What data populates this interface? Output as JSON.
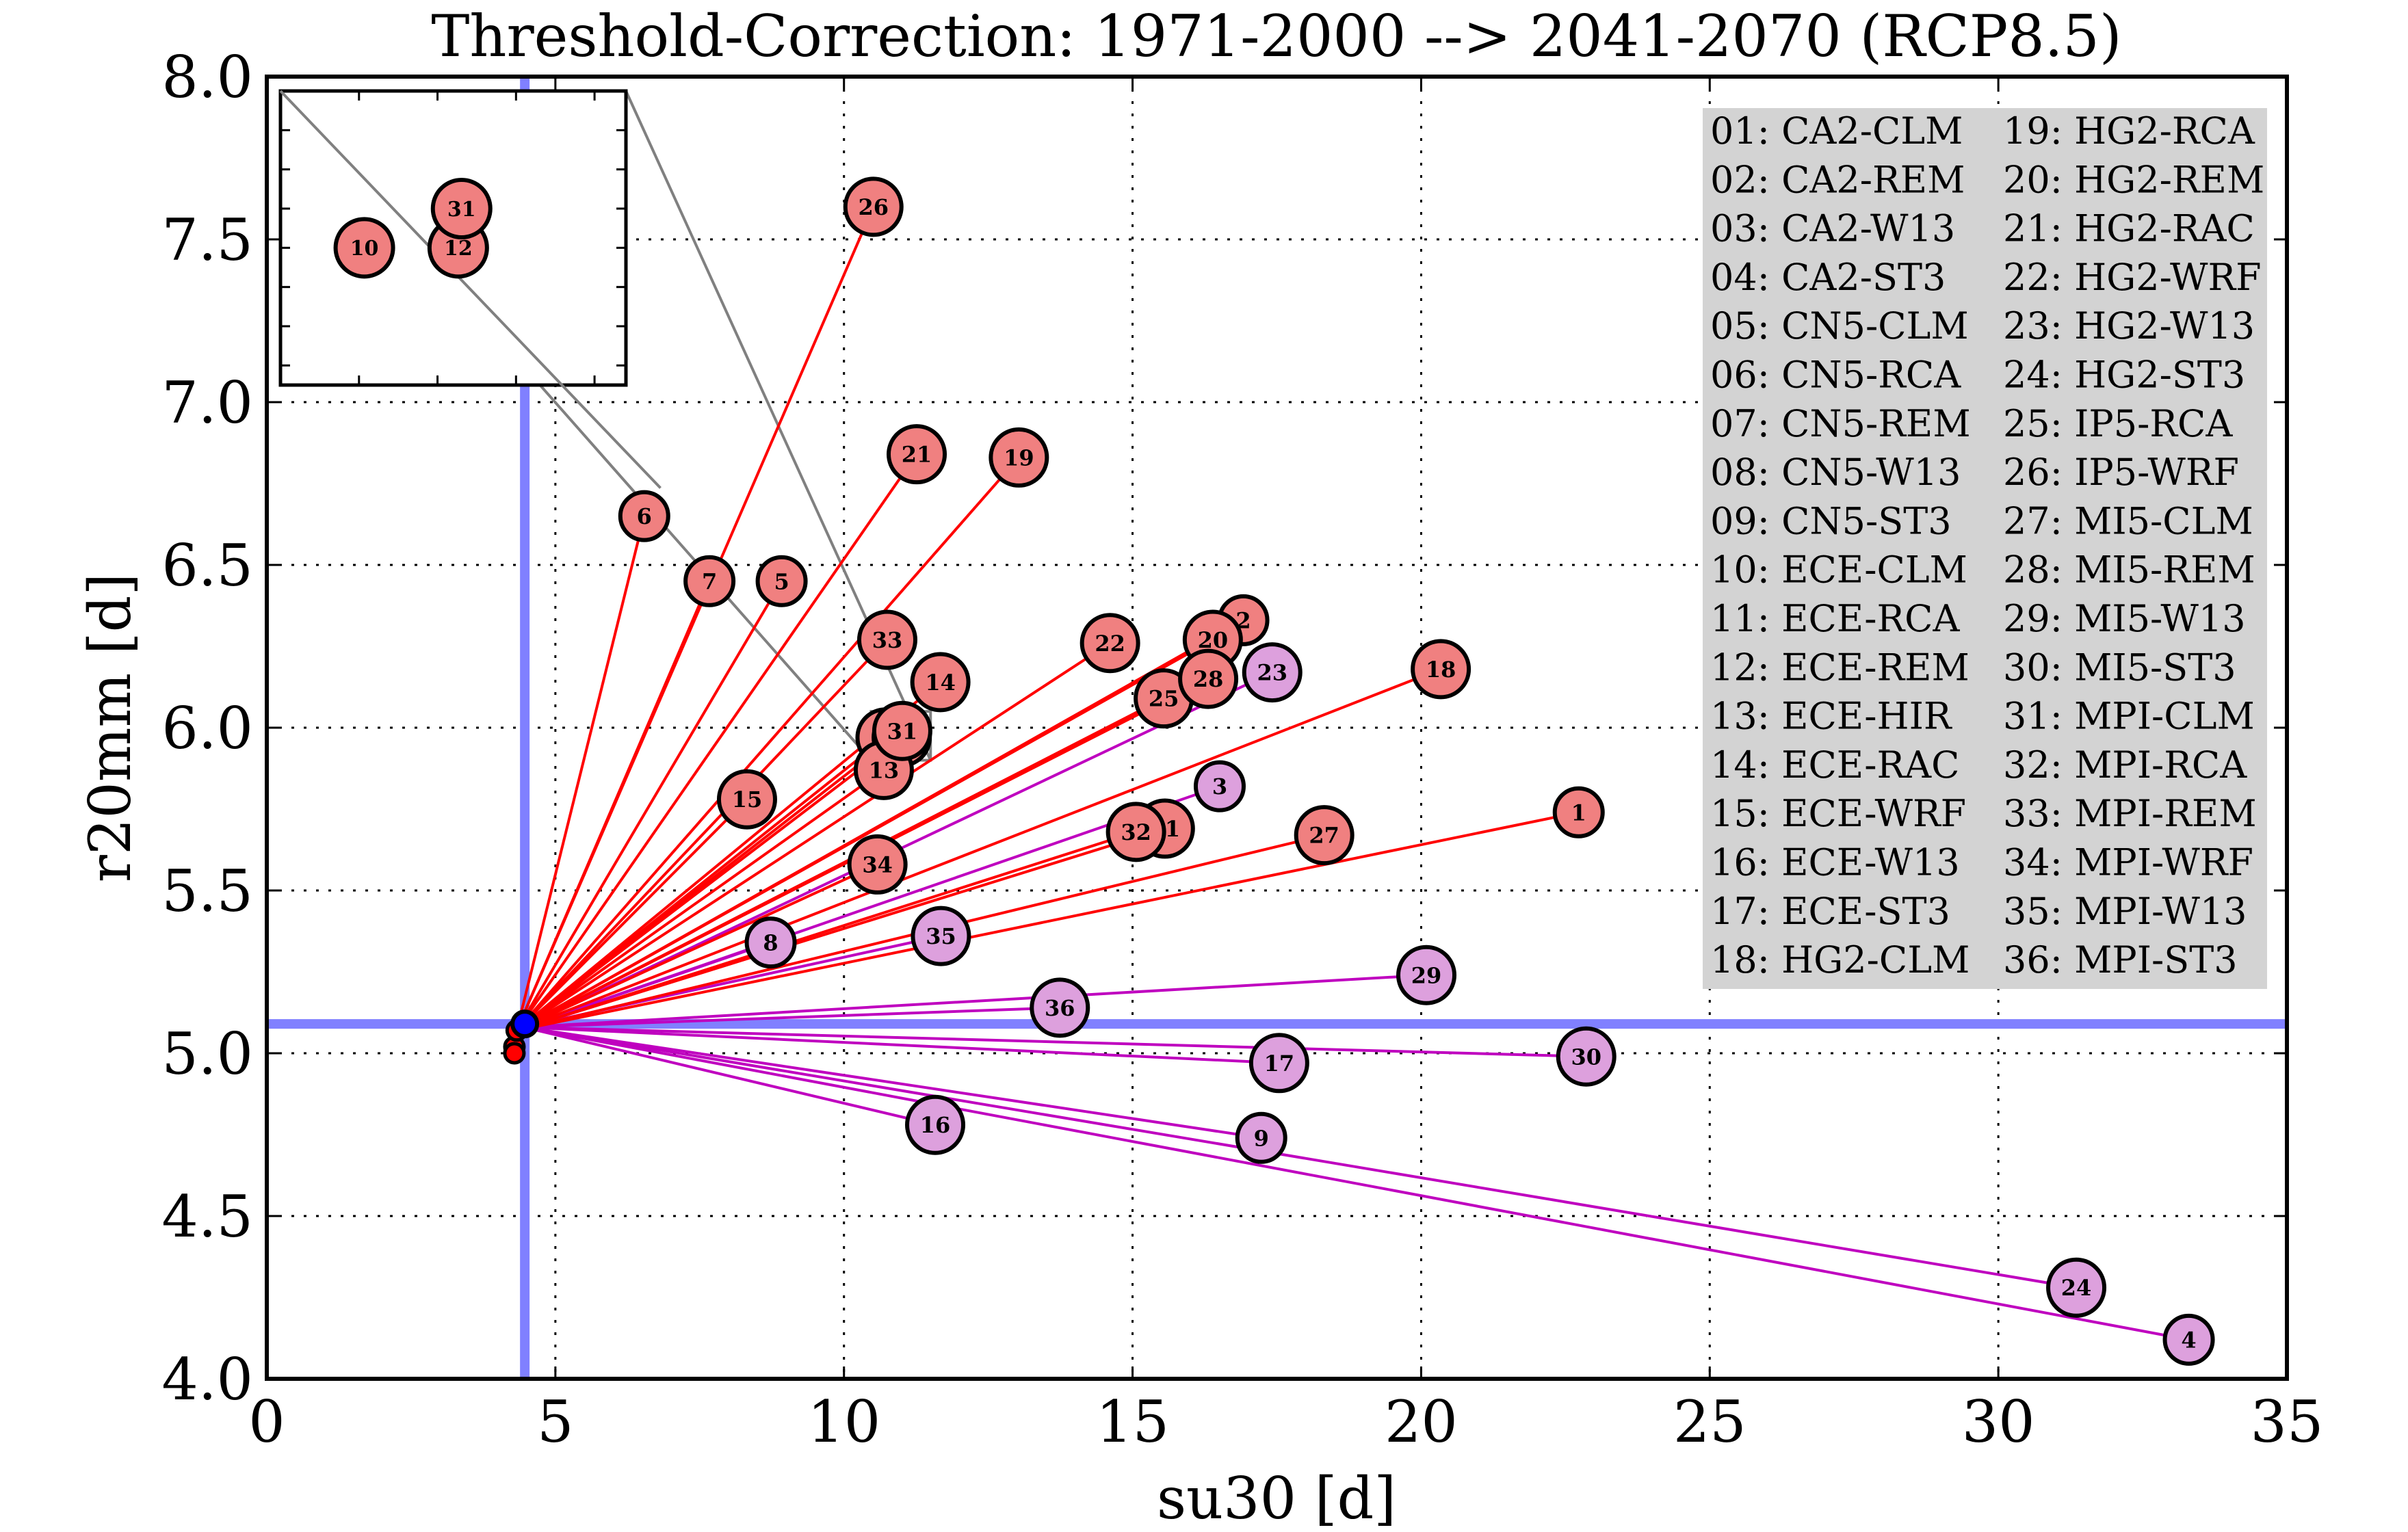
{
  "chart_data": {
    "type": "scatter",
    "title": "Threshold-Correction: 1971-2000 --> 2041-2070 (RCP8.5)",
    "xlabel": "su30 [d]",
    "ylabel": "r20mm [d]",
    "xlim": [
      0,
      35
    ],
    "ylim": [
      4.0,
      8.0
    ],
    "xticks": [
      0,
      5,
      10,
      15,
      20,
      25,
      30,
      35
    ],
    "xtick_labels": [
      "0",
      "5",
      "10",
      "15",
      "20",
      "25",
      "30",
      "35"
    ],
    "yticks": [
      4.0,
      4.5,
      5.0,
      5.5,
      6.0,
      6.5,
      7.0,
      7.5,
      8.0
    ],
    "ytick_labels": [
      "4.0",
      "4.5",
      "5.0",
      "5.5",
      "6.0",
      "6.5",
      "7.0",
      "7.5",
      "8.0"
    ],
    "grid": true,
    "reference": {
      "x": 4.47,
      "y": 5.09,
      "color": "#0000ff",
      "line_color": "#8080ff"
    },
    "origins": {
      "red": {
        "x": 4.33,
        "y": 5.07
      },
      "purple": {
        "x": 4.45,
        "y": 5.08
      }
    },
    "start_points": [
      {
        "x": 4.29,
        "y": 5.02
      },
      {
        "x": 4.29,
        "y": 5.0
      },
      {
        "x": 4.33,
        "y": 5.07
      }
    ],
    "colors": {
      "red_line": "#ff0000",
      "red_fill": "#f08080",
      "purple_line": "#bf00bf",
      "purple_fill": "#dda0dd",
      "start_fill": "#ff0000",
      "legend_bg": "#d3d3d3",
      "inset_connector": "#808080"
    },
    "points": [
      {
        "id": 1,
        "label": "1",
        "x": 22.73,
        "y": 5.74,
        "group": "red"
      },
      {
        "id": 2,
        "label": "2",
        "x": 16.92,
        "y": 6.33,
        "group": "red"
      },
      {
        "id": 3,
        "label": "3",
        "x": 16.51,
        "y": 5.82,
        "group": "purple"
      },
      {
        "id": 4,
        "label": "4",
        "x": 33.3,
        "y": 4.12,
        "group": "purple"
      },
      {
        "id": 5,
        "label": "5",
        "x": 8.92,
        "y": 6.45,
        "group": "red"
      },
      {
        "id": 6,
        "label": "6",
        "x": 6.54,
        "y": 6.65,
        "group": "red"
      },
      {
        "id": 7,
        "label": "7",
        "x": 7.67,
        "y": 6.45,
        "group": "red"
      },
      {
        "id": 8,
        "label": "8",
        "x": 8.73,
        "y": 5.34,
        "group": "purple"
      },
      {
        "id": 9,
        "label": "9",
        "x": 17.23,
        "y": 4.74,
        "group": "purple"
      },
      {
        "id": 10,
        "label": "10",
        "x": 10.72,
        "y": 5.97,
        "group": "red"
      },
      {
        "id": 11,
        "label": "11",
        "x": 15.56,
        "y": 5.69,
        "group": "red"
      },
      {
        "id": 12,
        "label": "12",
        "x": 11.0,
        "y": 5.97,
        "group": "red"
      },
      {
        "id": 13,
        "label": "13",
        "x": 10.69,
        "y": 5.87,
        "group": "red"
      },
      {
        "id": 14,
        "label": "14",
        "x": 11.67,
        "y": 6.14,
        "group": "red"
      },
      {
        "id": 15,
        "label": "15",
        "x": 8.32,
        "y": 5.78,
        "group": "red"
      },
      {
        "id": 16,
        "label": "16",
        "x": 11.58,
        "y": 4.78,
        "group": "purple"
      },
      {
        "id": 17,
        "label": "17",
        "x": 17.54,
        "y": 4.97,
        "group": "purple"
      },
      {
        "id": 18,
        "label": "18",
        "x": 20.34,
        "y": 6.18,
        "group": "red"
      },
      {
        "id": 19,
        "label": "19",
        "x": 13.03,
        "y": 6.83,
        "group": "red"
      },
      {
        "id": 20,
        "label": "20",
        "x": 16.39,
        "y": 6.27,
        "group": "red"
      },
      {
        "id": 21,
        "label": "21",
        "x": 11.26,
        "y": 6.84,
        "group": "red"
      },
      {
        "id": 22,
        "label": "22",
        "x": 14.61,
        "y": 6.26,
        "group": "red"
      },
      {
        "id": 23,
        "label": "23",
        "x": 17.42,
        "y": 6.17,
        "group": "purple"
      },
      {
        "id": 24,
        "label": "24",
        "x": 31.35,
        "y": 4.28,
        "group": "purple"
      },
      {
        "id": 25,
        "label": "25",
        "x": 15.54,
        "y": 6.09,
        "group": "red"
      },
      {
        "id": 26,
        "label": "26",
        "x": 10.51,
        "y": 7.6,
        "group": "red"
      },
      {
        "id": 27,
        "label": "27",
        "x": 18.32,
        "y": 5.67,
        "group": "red"
      },
      {
        "id": 28,
        "label": "28",
        "x": 16.31,
        "y": 6.15,
        "group": "red"
      },
      {
        "id": 29,
        "label": "29",
        "x": 20.09,
        "y": 5.24,
        "group": "purple"
      },
      {
        "id": 30,
        "label": "30",
        "x": 22.86,
        "y": 4.99,
        "group": "purple"
      },
      {
        "id": 31,
        "label": "31",
        "x": 11.01,
        "y": 5.99,
        "group": "red"
      },
      {
        "id": 32,
        "label": "32",
        "x": 15.06,
        "y": 5.68,
        "group": "red"
      },
      {
        "id": 33,
        "label": "33",
        "x": 10.75,
        "y": 6.27,
        "group": "red"
      },
      {
        "id": 34,
        "label": "34",
        "x": 10.58,
        "y": 5.58,
        "group": "red"
      },
      {
        "id": 35,
        "label": "35",
        "x": 11.68,
        "y": 5.36,
        "group": "purple"
      },
      {
        "id": 36,
        "label": "36",
        "x": 13.74,
        "y": 5.14,
        "group": "purple"
      }
    ],
    "inset": {
      "xlim": [
        10.47,
        11.5
      ],
      "ylim": [
        5.9,
        6.05
      ],
      "points": [
        10,
        12,
        31
      ]
    },
    "legend": {
      "placement": "top-right",
      "columns": [
        [
          "01: CA2-CLM",
          "02: CA2-REM",
          "03: CA2-W13",
          "04: CA2-ST3",
          "05: CN5-CLM",
          "06: CN5-RCA",
          "07: CN5-REM",
          "08: CN5-W13",
          "09: CN5-ST3",
          "10: ECE-CLM",
          "11: ECE-RCA",
          "12: ECE-REM",
          "13: ECE-HIR",
          "14: ECE-RAC",
          "15: ECE-WRF",
          "16: ECE-W13",
          "17: ECE-ST3",
          "18: HG2-CLM"
        ],
        [
          "19: HG2-RCA",
          "20: HG2-REM",
          "21: HG2-RAC",
          "22: HG2-WRF",
          "23: HG2-W13",
          "24: HG2-ST3",
          "25: IP5-RCA",
          "26: IP5-WRF",
          "27: MI5-CLM",
          "28: MI5-REM",
          "29: MI5-W13",
          "30: MI5-ST3",
          "31: MPI-CLM",
          "32: MPI-RCA",
          "33: MPI-REM",
          "34: MPI-WRF",
          "35: MPI-W13",
          "36: MPI-ST3"
        ]
      ]
    }
  }
}
